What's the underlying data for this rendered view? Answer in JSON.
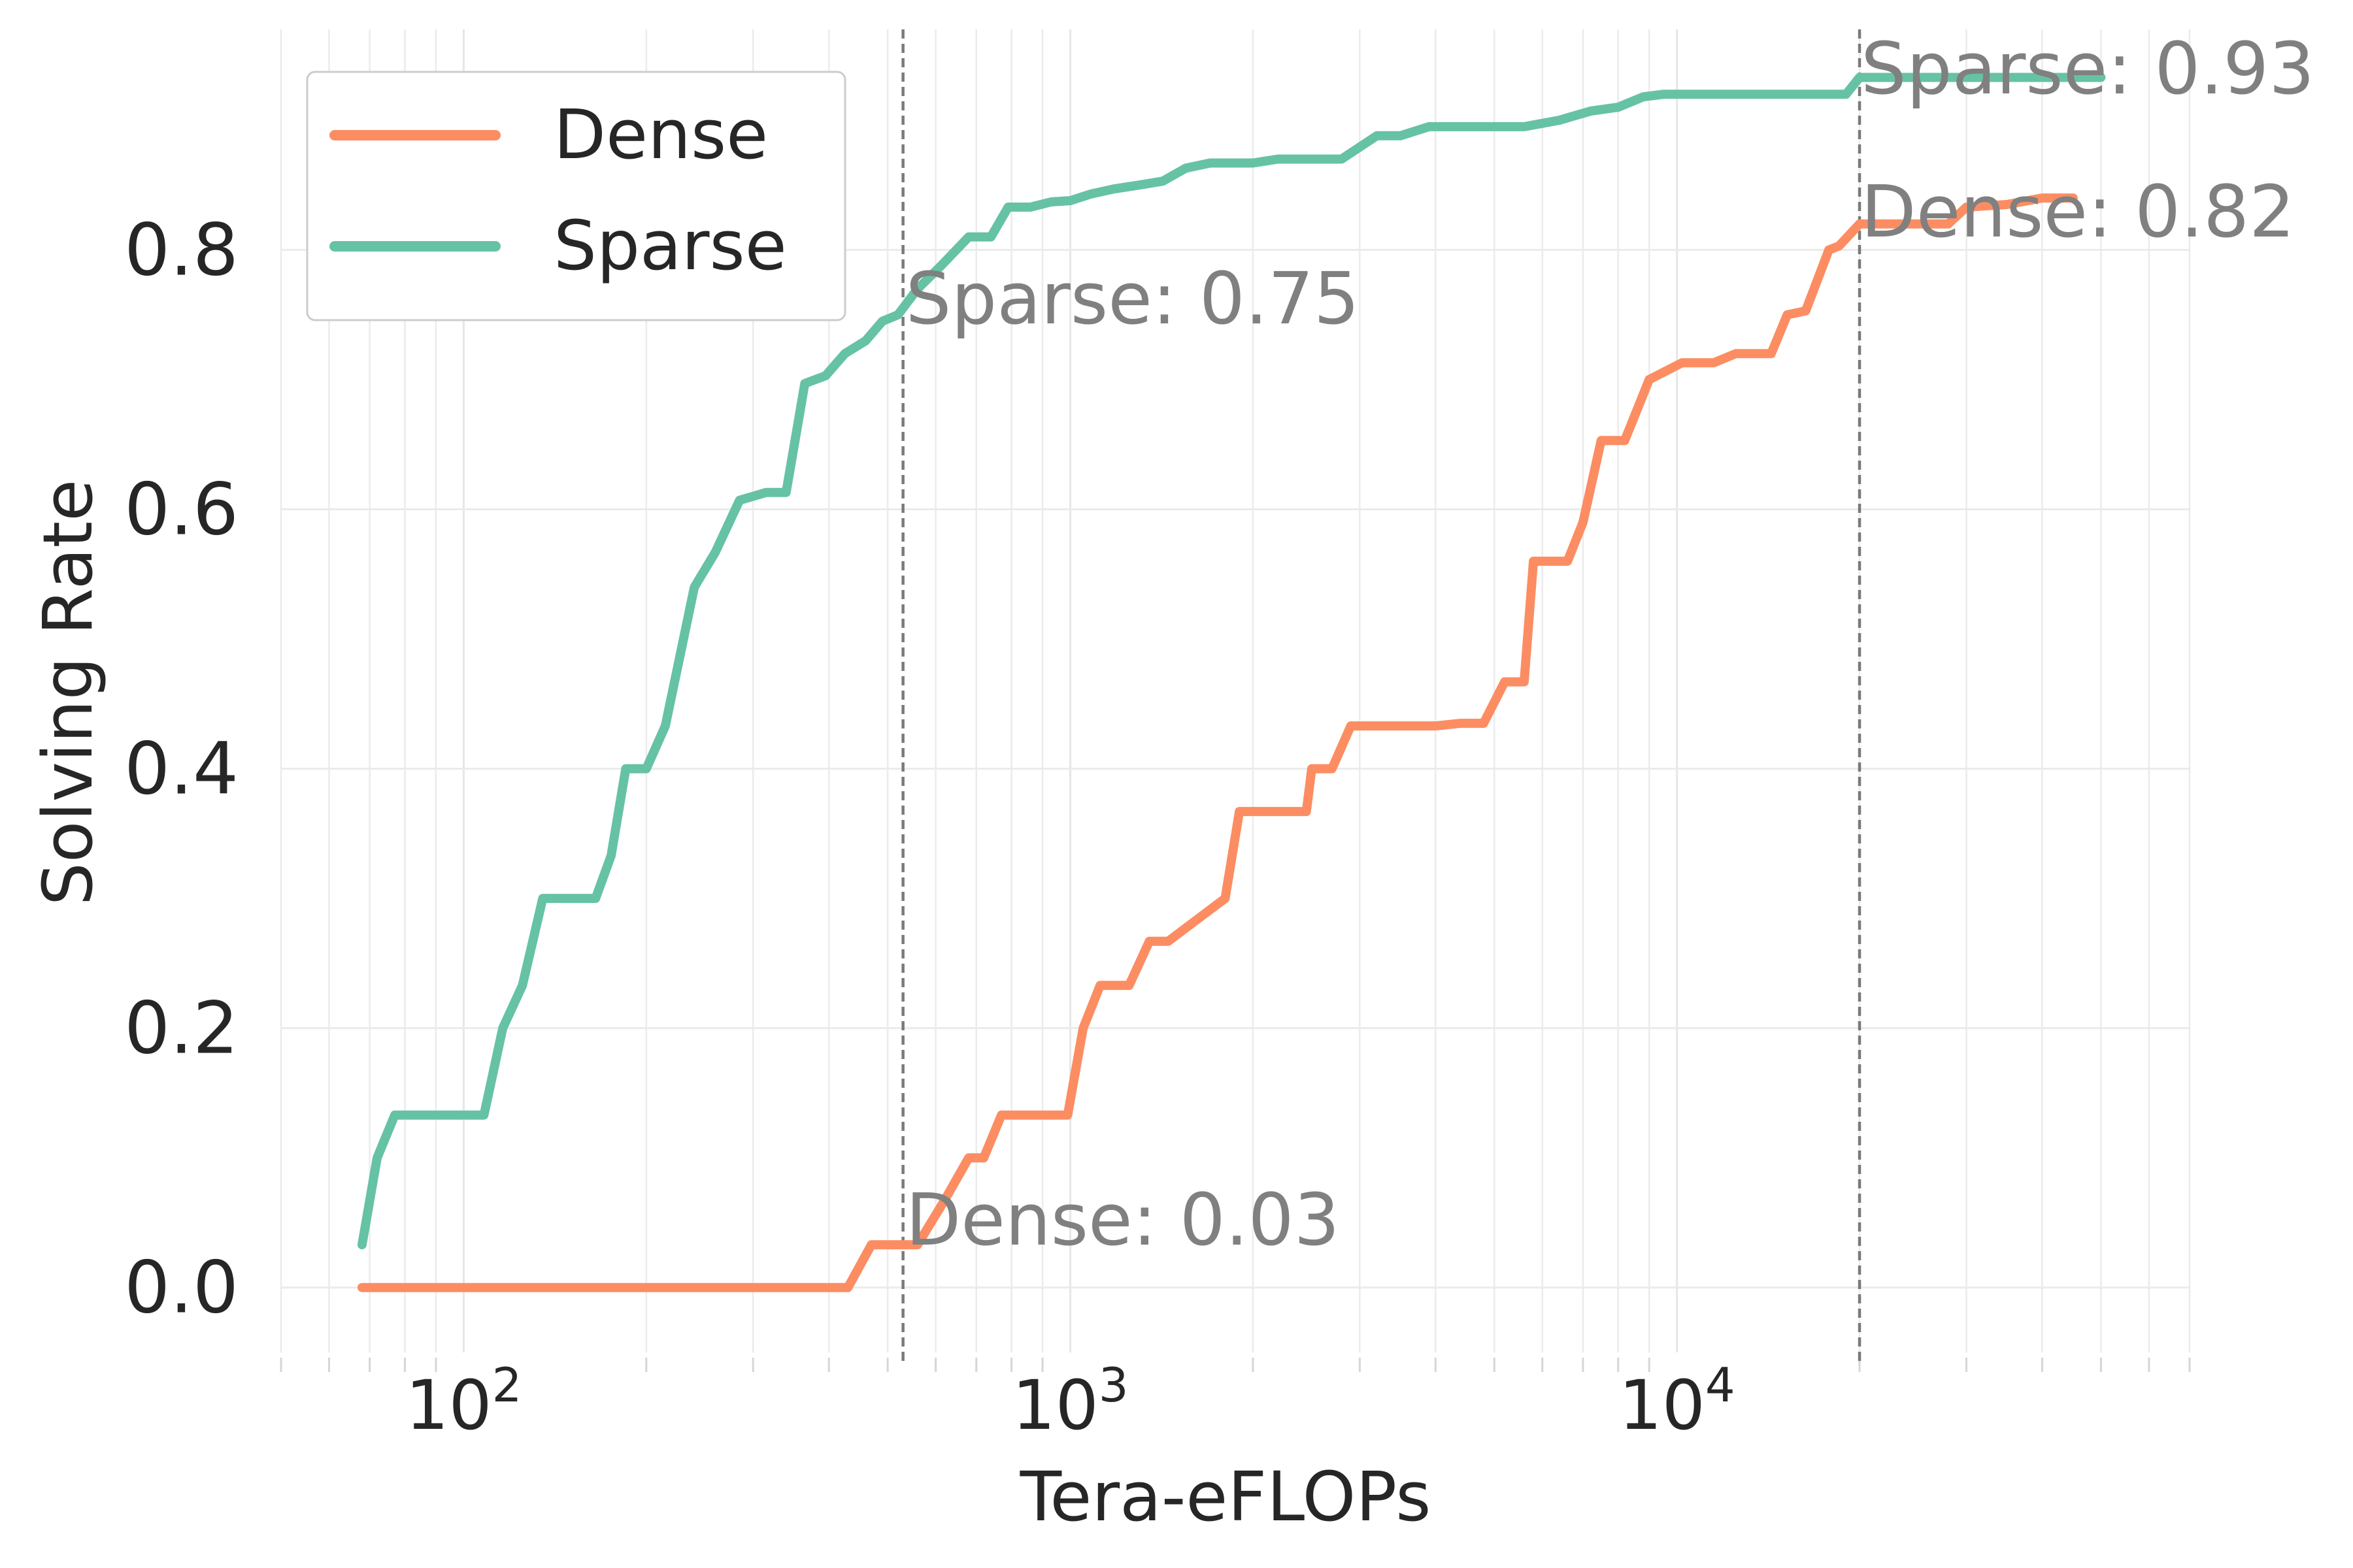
{
  "chart_data": {
    "type": "line",
    "title": "",
    "xlabel": "Tera-eFLOPs",
    "ylabel": "Solving Rate",
    "xscale": "log",
    "xlim": [
      50,
      70000
    ],
    "ylim": [
      -0.05,
      0.97
    ],
    "x_ticks": [
      {
        "value": 100,
        "base": "10",
        "exp": "2"
      },
      {
        "value": 1000,
        "base": "10",
        "exp": "3"
      },
      {
        "value": 10000,
        "base": "10",
        "exp": "4"
      }
    ],
    "y_ticks": [
      {
        "value": 0.0,
        "label": "0.0"
      },
      {
        "value": 0.2,
        "label": "0.2"
      },
      {
        "value": 0.4,
        "label": "0.4"
      },
      {
        "value": 0.6,
        "label": "0.6"
      },
      {
        "value": 0.8,
        "label": "0.8"
      }
    ],
    "grid": true,
    "legend_position": "top-left",
    "series": [
      {
        "name": "Dense",
        "color": "#fc8d62",
        "x": [
          68,
          150,
          300,
          430,
          470,
          520,
          560,
          620,
          680,
          720,
          770,
          850,
          990,
          1050,
          1120,
          1250,
          1350,
          1450,
          1800,
          1900,
          2000,
          2450,
          2500,
          2700,
          2900,
          3100,
          4000,
          4400,
          4800,
          5200,
          5600,
          5800,
          6600,
          7000,
          7500,
          8200,
          9000,
          10200,
          11500,
          12500,
          13000,
          14300,
          15200,
          16300,
          17800,
          18500,
          20000,
          25000,
          28000,
          30000,
          35000,
          40000,
          45000
        ],
        "y": [
          0.0,
          0.0,
          0.0,
          0.0,
          0.033,
          0.033,
          0.033,
          0.067,
          0.1,
          0.1,
          0.133,
          0.133,
          0.133,
          0.2,
          0.233,
          0.233,
          0.267,
          0.267,
          0.3,
          0.367,
          0.367,
          0.367,
          0.4,
          0.4,
          0.433,
          0.433,
          0.433,
          0.435,
          0.435,
          0.467,
          0.467,
          0.56,
          0.56,
          0.59,
          0.653,
          0.653,
          0.7,
          0.713,
          0.713,
          0.72,
          0.72,
          0.72,
          0.75,
          0.753,
          0.8,
          0.803,
          0.82,
          0.82,
          0.82,
          0.833,
          0.835,
          0.84,
          0.84
        ]
      },
      {
        "name": "Sparse",
        "color": "#66c2a5",
        "x": [
          68,
          72,
          77,
          85,
          95,
          108,
          116,
          125,
          135,
          150,
          165,
          175,
          185,
          200,
          215,
          240,
          260,
          285,
          300,
          315,
          340,
          365,
          395,
          425,
          460,
          490,
          520,
          560,
          610,
          680,
          740,
          790,
          860,
          930,
          1000,
          1080,
          1180,
          1300,
          1420,
          1550,
          1700,
          1850,
          2000,
          2200,
          2500,
          2800,
          3200,
          3500,
          3900,
          4200,
          4800,
          5600,
          6400,
          7200,
          8000,
          8800,
          9500,
          10500,
          12000,
          14000,
          16500,
          19000,
          20000,
          24000,
          30000,
          38000,
          50000
        ],
        "y": [
          0.033,
          0.1,
          0.133,
          0.133,
          0.133,
          0.133,
          0.2,
          0.233,
          0.3,
          0.3,
          0.3,
          0.333,
          0.4,
          0.4,
          0.433,
          0.54,
          0.567,
          0.607,
          0.61,
          0.613,
          0.613,
          0.697,
          0.703,
          0.72,
          0.73,
          0.745,
          0.75,
          0.77,
          0.787,
          0.81,
          0.81,
          0.833,
          0.833,
          0.837,
          0.838,
          0.843,
          0.847,
          0.85,
          0.853,
          0.863,
          0.867,
          0.867,
          0.867,
          0.87,
          0.87,
          0.87,
          0.888,
          0.888,
          0.895,
          0.895,
          0.895,
          0.895,
          0.9,
          0.907,
          0.91,
          0.918,
          0.92,
          0.92,
          0.92,
          0.92,
          0.92,
          0.92,
          0.933,
          0.933,
          0.933,
          0.933,
          0.933
        ]
      }
    ],
    "reference_lines": [
      {
        "x": 530,
        "label_dense": "Dense: 0.03",
        "label_sparse": "Sparse: 0.75"
      },
      {
        "x": 20000,
        "label_dense": "Dense: 0.82",
        "label_sparse": "Sparse: 0.93"
      }
    ]
  }
}
